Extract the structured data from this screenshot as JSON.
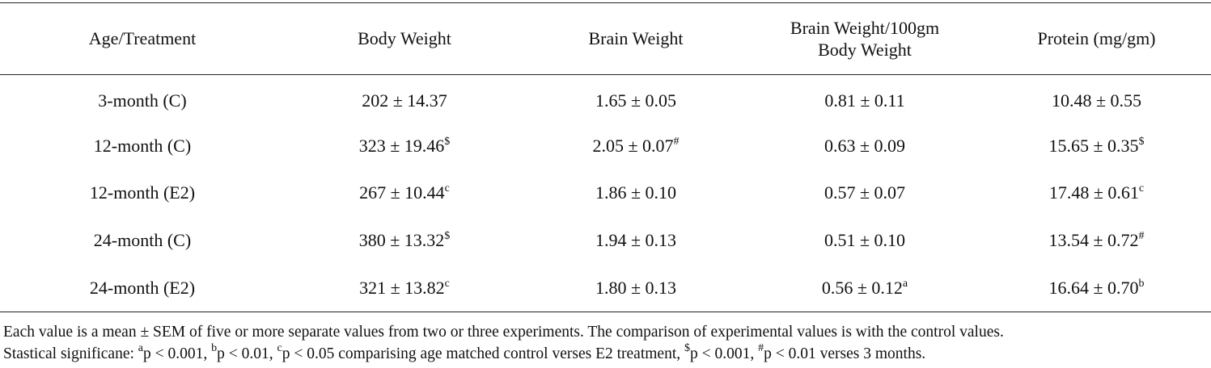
{
  "table": {
    "headers": [
      {
        "lines": [
          "Age/Treatment"
        ]
      },
      {
        "lines": [
          "Body Weight"
        ]
      },
      {
        "lines": [
          "Brain Weight"
        ]
      },
      {
        "lines": [
          "Brain Weight/100gm",
          "Body Weight"
        ]
      },
      {
        "lines": [
          "Protein (mg/gm)"
        ]
      }
    ],
    "rows": [
      {
        "cells": [
          {
            "text": "3-month (C)",
            "sup": ""
          },
          {
            "text": "202 ± 14.37",
            "sup": ""
          },
          {
            "text": "1.65 ± 0.05",
            "sup": ""
          },
          {
            "text": "0.81 ± 0.11",
            "sup": ""
          },
          {
            "text": "10.48 ± 0.55",
            "sup": ""
          }
        ]
      },
      {
        "cells": [
          {
            "text": "12-month (C)",
            "sup": ""
          },
          {
            "text": "323 ± 19.46",
            "sup": "$"
          },
          {
            "text": "2.05 ± 0.07",
            "sup": "#"
          },
          {
            "text": "0.63 ± 0.09",
            "sup": ""
          },
          {
            "text": "15.65 ± 0.35",
            "sup": "$"
          }
        ]
      },
      {
        "cells": [
          {
            "text": "12-month (E2)",
            "sup": ""
          },
          {
            "text": "267 ± 10.44",
            "sup": "c"
          },
          {
            "text": "1.86 ± 0.10",
            "sup": ""
          },
          {
            "text": "0.57 ± 0.07",
            "sup": ""
          },
          {
            "text": "17.48 ± 0.61",
            "sup": "c"
          }
        ]
      },
      {
        "cells": [
          {
            "text": "24-month (C)",
            "sup": ""
          },
          {
            "text": "380 ± 13.32",
            "sup": "$"
          },
          {
            "text": "1.94 ± 0.13",
            "sup": ""
          },
          {
            "text": "0.51 ± 0.10",
            "sup": ""
          },
          {
            "text": "13.54 ± 0.72",
            "sup": "#"
          }
        ]
      },
      {
        "cells": [
          {
            "text": "24-month (E2)",
            "sup": ""
          },
          {
            "text": "321 ± 13.82",
            "sup": "c"
          },
          {
            "text": "1.80 ± 0.13",
            "sup": ""
          },
          {
            "text": "0.56 ± 0.12",
            "sup": "a"
          },
          {
            "text": "16.64 ± 0.70",
            "sup": "b"
          }
        ]
      }
    ]
  },
  "notes": {
    "line1": "Each value is a mean ± SEM of five or more separate values from two or three experiments. The comparison of experimental values is with the control values.",
    "line2": {
      "prefix": "Stastical significane: ",
      "sup_a": "a",
      "text_a": "p < 0.001, ",
      "sup_b": "b",
      "text_b": "p < 0.01, ",
      "sup_c": "c",
      "text_c": "p < 0.05 comparising age matched control verses E2 treatment, ",
      "sup_dollar": "$",
      "text_dollar": "p < 0.001, ",
      "sup_hash": "#",
      "text_hash": "p < 0.01 verses 3 months."
    }
  }
}
